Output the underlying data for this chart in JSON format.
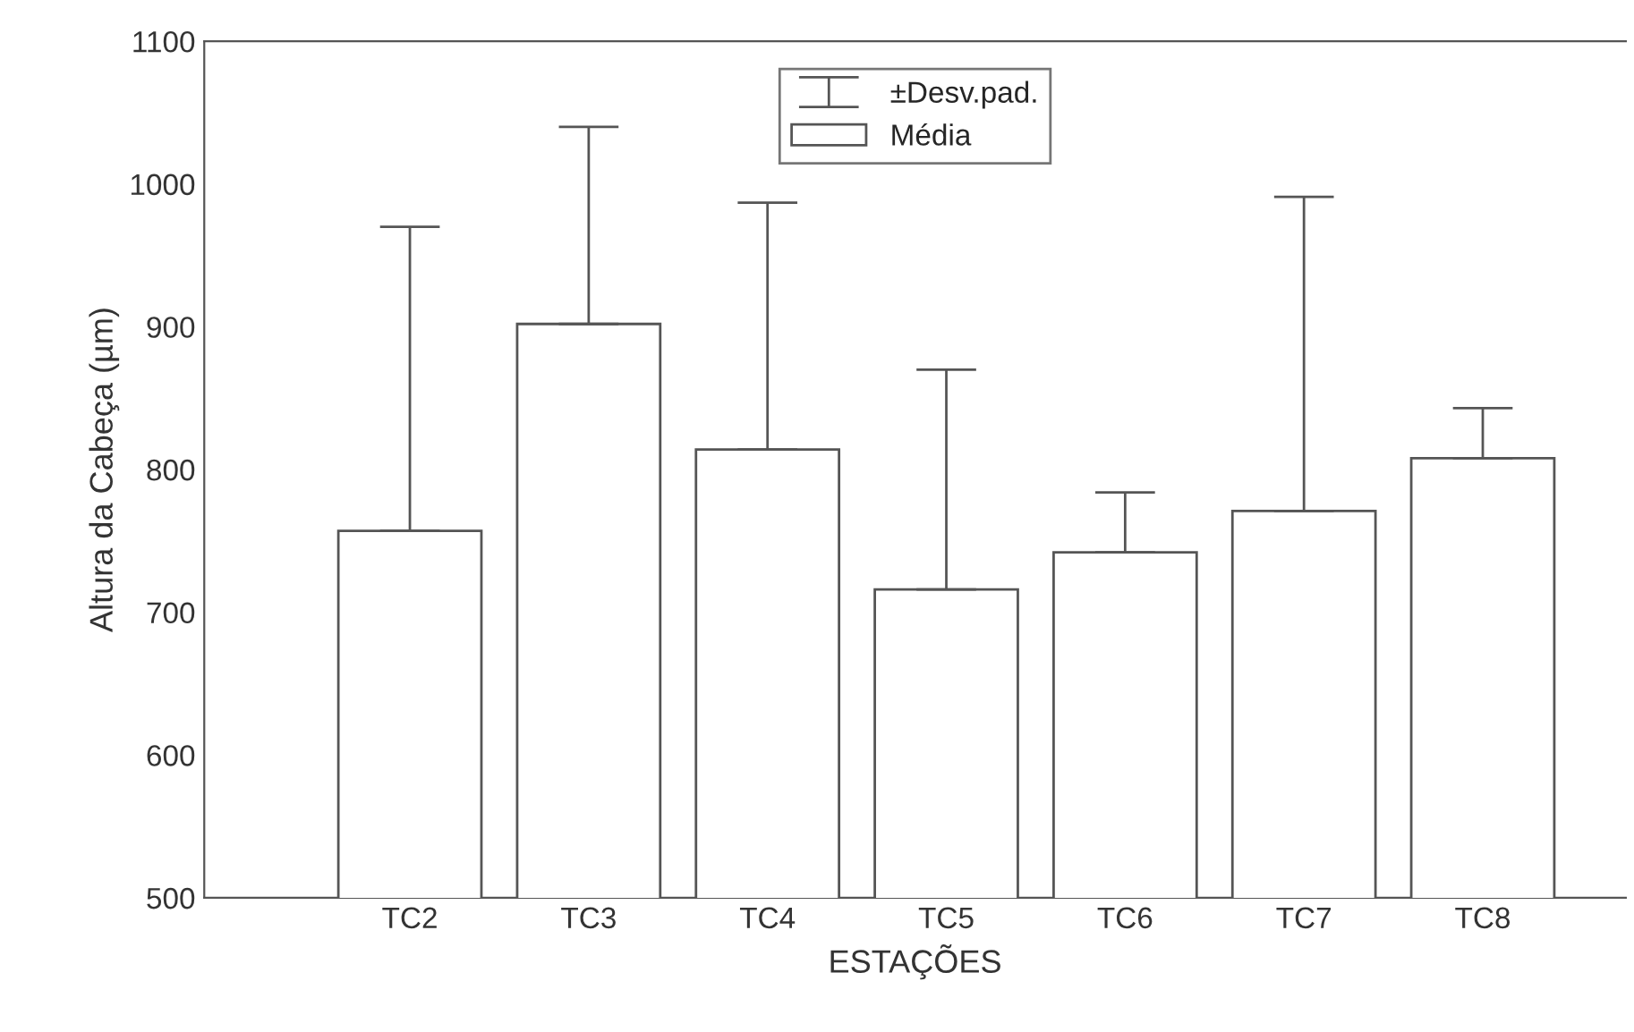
{
  "chart_data": {
    "type": "bar",
    "xlabel": "ESTAÇÕES",
    "ylabel": "Altura da Cabeça (µm)",
    "categories": [
      "TC2",
      "TC3",
      "TC4",
      "TC5",
      "TC6",
      "TC7",
      "TC8"
    ],
    "series": [
      {
        "name": "Média",
        "color": "#ffffff",
        "values": [
          757,
          902,
          814,
          716,
          742,
          771,
          808
        ],
        "errors": [
          [
            757,
            970
          ],
          [
            902,
            1040
          ],
          [
            814,
            987
          ],
          [
            716,
            870
          ],
          [
            742,
            784
          ],
          [
            771,
            991
          ],
          [
            808,
            843
          ]
        ]
      }
    ],
    "annotations": [
      "±Desv.pad."
    ],
    "ylim": [
      500,
      1100
    ],
    "yticks": [
      500,
      600,
      700,
      800,
      900,
      1000,
      1100
    ],
    "grid": false,
    "legend": "top"
  }
}
